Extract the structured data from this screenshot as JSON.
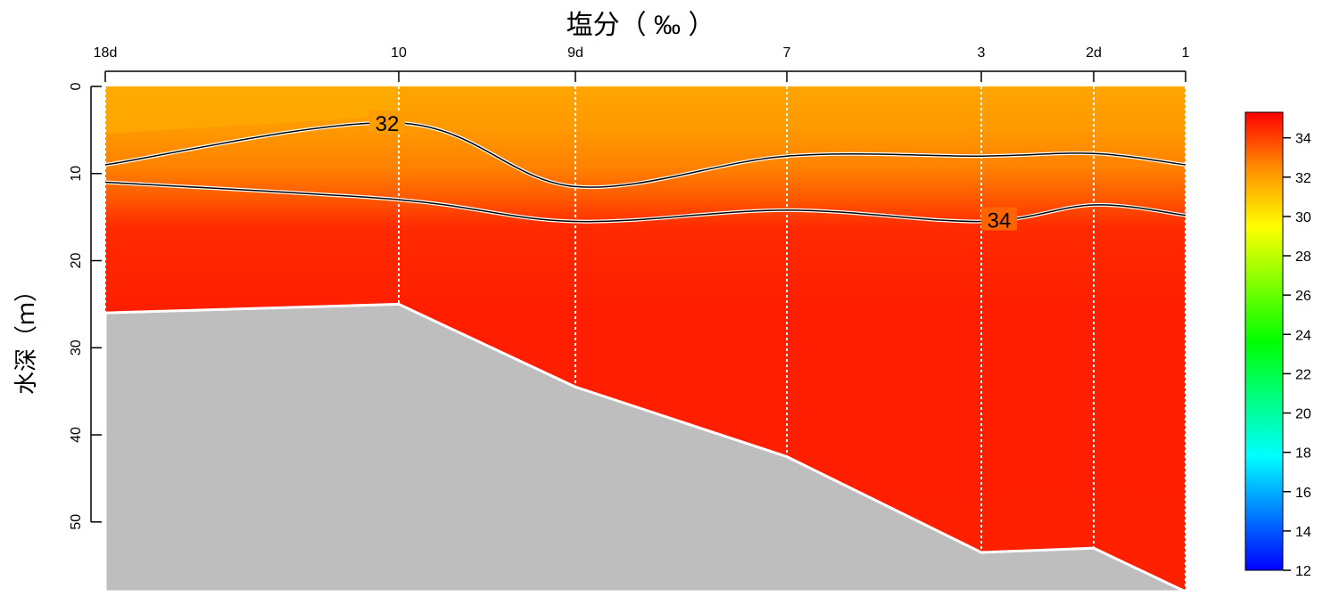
{
  "chart_data": {
    "type": "heatmap",
    "title": "塩分（ ‰ ）",
    "ylabel": "水深（ｍ）",
    "xlabel": "",
    "ylim": [
      0,
      58
    ],
    "stations": [
      {
        "label": "18d",
        "depth": 26
      },
      {
        "label": "10",
        "depth": 25
      },
      {
        "label": "9d",
        "depth": 34.5
      },
      {
        "label": "7",
        "depth": 42.5
      },
      {
        "label": "3",
        "depth": 53.5
      },
      {
        "label": "2d",
        "depth": 53
      },
      {
        "label": "1",
        "depth": 58
      }
    ],
    "y_ticks": [
      0,
      10,
      20,
      30,
      40,
      50
    ],
    "contours": [
      {
        "level": 32,
        "label": "32",
        "depths": [
          9,
          4.2,
          11.5,
          8,
          8,
          7.7,
          9
        ]
      },
      {
        "level": 34,
        "label": "34",
        "depths": [
          11,
          13,
          15.5,
          14.2,
          15.5,
          13.6,
          14.8
        ]
      }
    ],
    "colorbar": {
      "min": 12,
      "max": 35.3,
      "ticks": [
        12,
        14,
        16,
        18,
        20,
        22,
        24,
        26,
        28,
        30,
        32,
        34
      ]
    },
    "colors": {
      "bottom": "#bebebe",
      "deep": "#ff2000",
      "surface": "#ffa000"
    }
  }
}
